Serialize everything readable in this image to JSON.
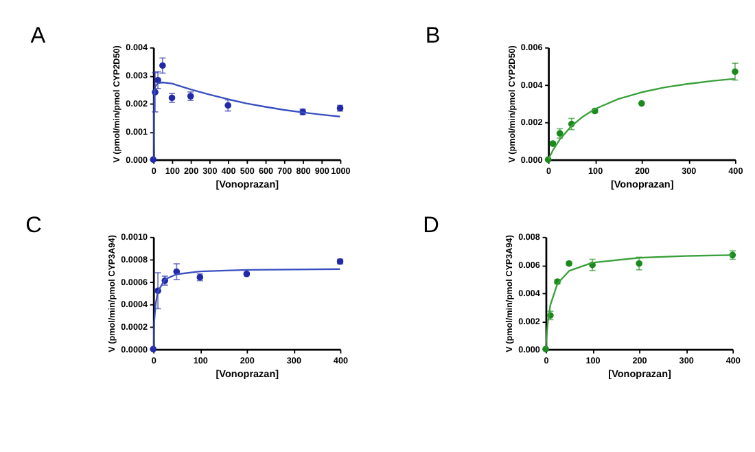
{
  "chart_data": [
    {
      "type": "scatter",
      "title": "A",
      "xlabel": "[Vonoprazan]",
      "ylabel": "V (pmol/min/pmol CYP2D50)",
      "xlim": [
        0,
        1000
      ],
      "xticks": [
        0,
        100,
        200,
        300,
        400,
        500,
        600,
        700,
        800,
        900,
        1000
      ],
      "ylim": [
        0,
        0.004
      ],
      "yticks": [
        {
          "value": 0,
          "label": "0.000"
        },
        {
          "value": 0.001,
          "label": "0.001"
        },
        {
          "value": 0.002,
          "label": "0.002"
        },
        {
          "value": 0.003,
          "label": "0.003"
        },
        {
          "value": 0.004,
          "label": "0.004"
        }
      ],
      "grid": false,
      "legend": false,
      "marker": "circle",
      "series": [
        {
          "color": "#2229a8",
          "x": [
            0,
            10,
            25,
            50,
            100,
            200,
            400,
            800,
            1000
          ],
          "values": [
            0,
            0.0024,
            0.00283,
            0.00335,
            0.0022,
            0.00226,
            0.00193,
            0.0017,
            0.00183
          ],
          "errors": [
            null,
            0.0007,
            0.0003,
            0.00027,
            0.00016,
            0.00015,
            0.0002,
            0.0001,
            0.0001
          ]
        },
        {
          "type": "line",
          "marker": "none",
          "color": "#3a4fc0",
          "x": [
            0,
            5,
            10,
            25,
            50,
            100,
            200,
            300,
            400,
            500,
            600,
            700,
            800,
            900,
            1000
          ],
          "values": [
            0,
            0.0022,
            0.0026,
            0.00272,
            0.00275,
            0.00271,
            0.0025,
            0.00232,
            0.00215,
            0.002,
            0.00188,
            0.00177,
            0.00168,
            0.0016,
            0.00153
          ]
        }
      ]
    },
    {
      "type": "scatter",
      "title": "B",
      "xlabel": "[Vonoprazan]",
      "ylabel": "V (pmol/min/pmol CYP2D50)",
      "xlim": [
        0,
        400
      ],
      "xticks": [
        0,
        100,
        200,
        300,
        400
      ],
      "ylim": [
        0,
        0.006
      ],
      "yticks": [
        {
          "value": 0,
          "label": "0.000"
        },
        {
          "value": 0.002,
          "label": "0.002"
        },
        {
          "value": 0.004,
          "label": "0.004"
        },
        {
          "value": 0.006,
          "label": "0.006"
        }
      ],
      "grid": false,
      "legend": false,
      "marker": "circle",
      "series": [
        {
          "color": "#1a8a1a",
          "x": [
            0,
            10,
            25,
            50,
            100,
            200,
            400
          ],
          "values": [
            0,
            0.00085,
            0.0014,
            0.0019,
            0.0026,
            0.003,
            0.0047
          ],
          "errors": [
            null,
            0.0001,
            0.00025,
            0.0003,
            0.0001,
            null,
            0.00045
          ]
        },
        {
          "type": "line",
          "marker": "none",
          "color": "#3aa03a",
          "x": [
            0,
            10,
            25,
            50,
            75,
            100,
            150,
            200,
            250,
            300,
            350,
            400
          ],
          "values": [
            0,
            0.00049,
            0.00108,
            0.0018,
            0.00231,
            0.0027,
            0.00324,
            0.0036,
            0.00386,
            0.00405,
            0.0042,
            0.00432
          ]
        }
      ]
    },
    {
      "type": "scatter",
      "title": "C",
      "xlabel": "[Vonoprazan]",
      "ylabel": "V (pmol/min/pmol CYP3A94)",
      "xlim": [
        0,
        400
      ],
      "xticks": [
        0,
        100,
        200,
        300,
        400
      ],
      "ylim": [
        0,
        0.001
      ],
      "yticks": [
        {
          "value": 0,
          "label": "0.0000"
        },
        {
          "value": 0.0002,
          "label": "0.0002"
        },
        {
          "value": 0.0004,
          "label": "0.0004"
        },
        {
          "value": 0.0006,
          "label": "0.0006"
        },
        {
          "value": 0.0008,
          "label": "0.0008"
        },
        {
          "value": 0.001,
          "label": "0.0010"
        }
      ],
      "grid": false,
      "legend": false,
      "marker": "circle",
      "series": [
        {
          "color": "#2229a8",
          "x": [
            0,
            10,
            25,
            50,
            100,
            200,
            400
          ],
          "values": [
            0,
            0.00052,
            0.00061,
            0.00069,
            0.00064,
            0.00067,
            0.00078
          ],
          "errors": [
            null,
            0.00016,
            4e-05,
            7e-05,
            3e-05,
            1e-05,
            2e-05
          ]
        },
        {
          "type": "line",
          "marker": "none",
          "color": "#3a4fc0",
          "x": [
            0,
            2,
            5,
            10,
            25,
            50,
            100,
            200,
            400
          ],
          "values": [
            0,
            0.00024,
            0.0004,
            0.000514,
            0.000621,
            0.000667,
            0.000692,
            0.000706,
            0.000713
          ]
        }
      ]
    },
    {
      "type": "scatter",
      "title": "D",
      "xlabel": "[Vonoprazan]",
      "ylabel": "V (pmol/min/pmol CYP3A94)",
      "xlim": [
        0,
        400
      ],
      "xticks": [
        0,
        100,
        200,
        300,
        400
      ],
      "ylim": [
        0,
        0.008
      ],
      "yticks": [
        {
          "value": 0,
          "label": "0.000"
        },
        {
          "value": 0.002,
          "label": "0.002"
        },
        {
          "value": 0.004,
          "label": "0.004"
        },
        {
          "value": 0.006,
          "label": "0.006"
        },
        {
          "value": 0.008,
          "label": "0.008"
        }
      ],
      "grid": false,
      "legend": false,
      "marker": "circle",
      "series": [
        {
          "color": "#1a8a1a",
          "x": [
            0,
            10,
            25,
            50,
            100,
            200,
            400
          ],
          "values": [
            0,
            0.0024,
            0.0048,
            0.0061,
            0.006,
            0.0061,
            0.0067
          ],
          "errors": [
            null,
            0.0003,
            0.00015,
            0.0001,
            0.0004,
            0.00045,
            0.0003
          ]
        },
        {
          "type": "line",
          "marker": "none",
          "color": "#3aa03a",
          "x": [
            0,
            2,
            5,
            10,
            25,
            50,
            100,
            200,
            300,
            400
          ],
          "values": [
            0,
            0.00099,
            0.00203,
            0.00314,
            0.00466,
            0.00557,
            0.00616,
            0.00651,
            0.00664,
            0.0067
          ]
        }
      ]
    }
  ]
}
